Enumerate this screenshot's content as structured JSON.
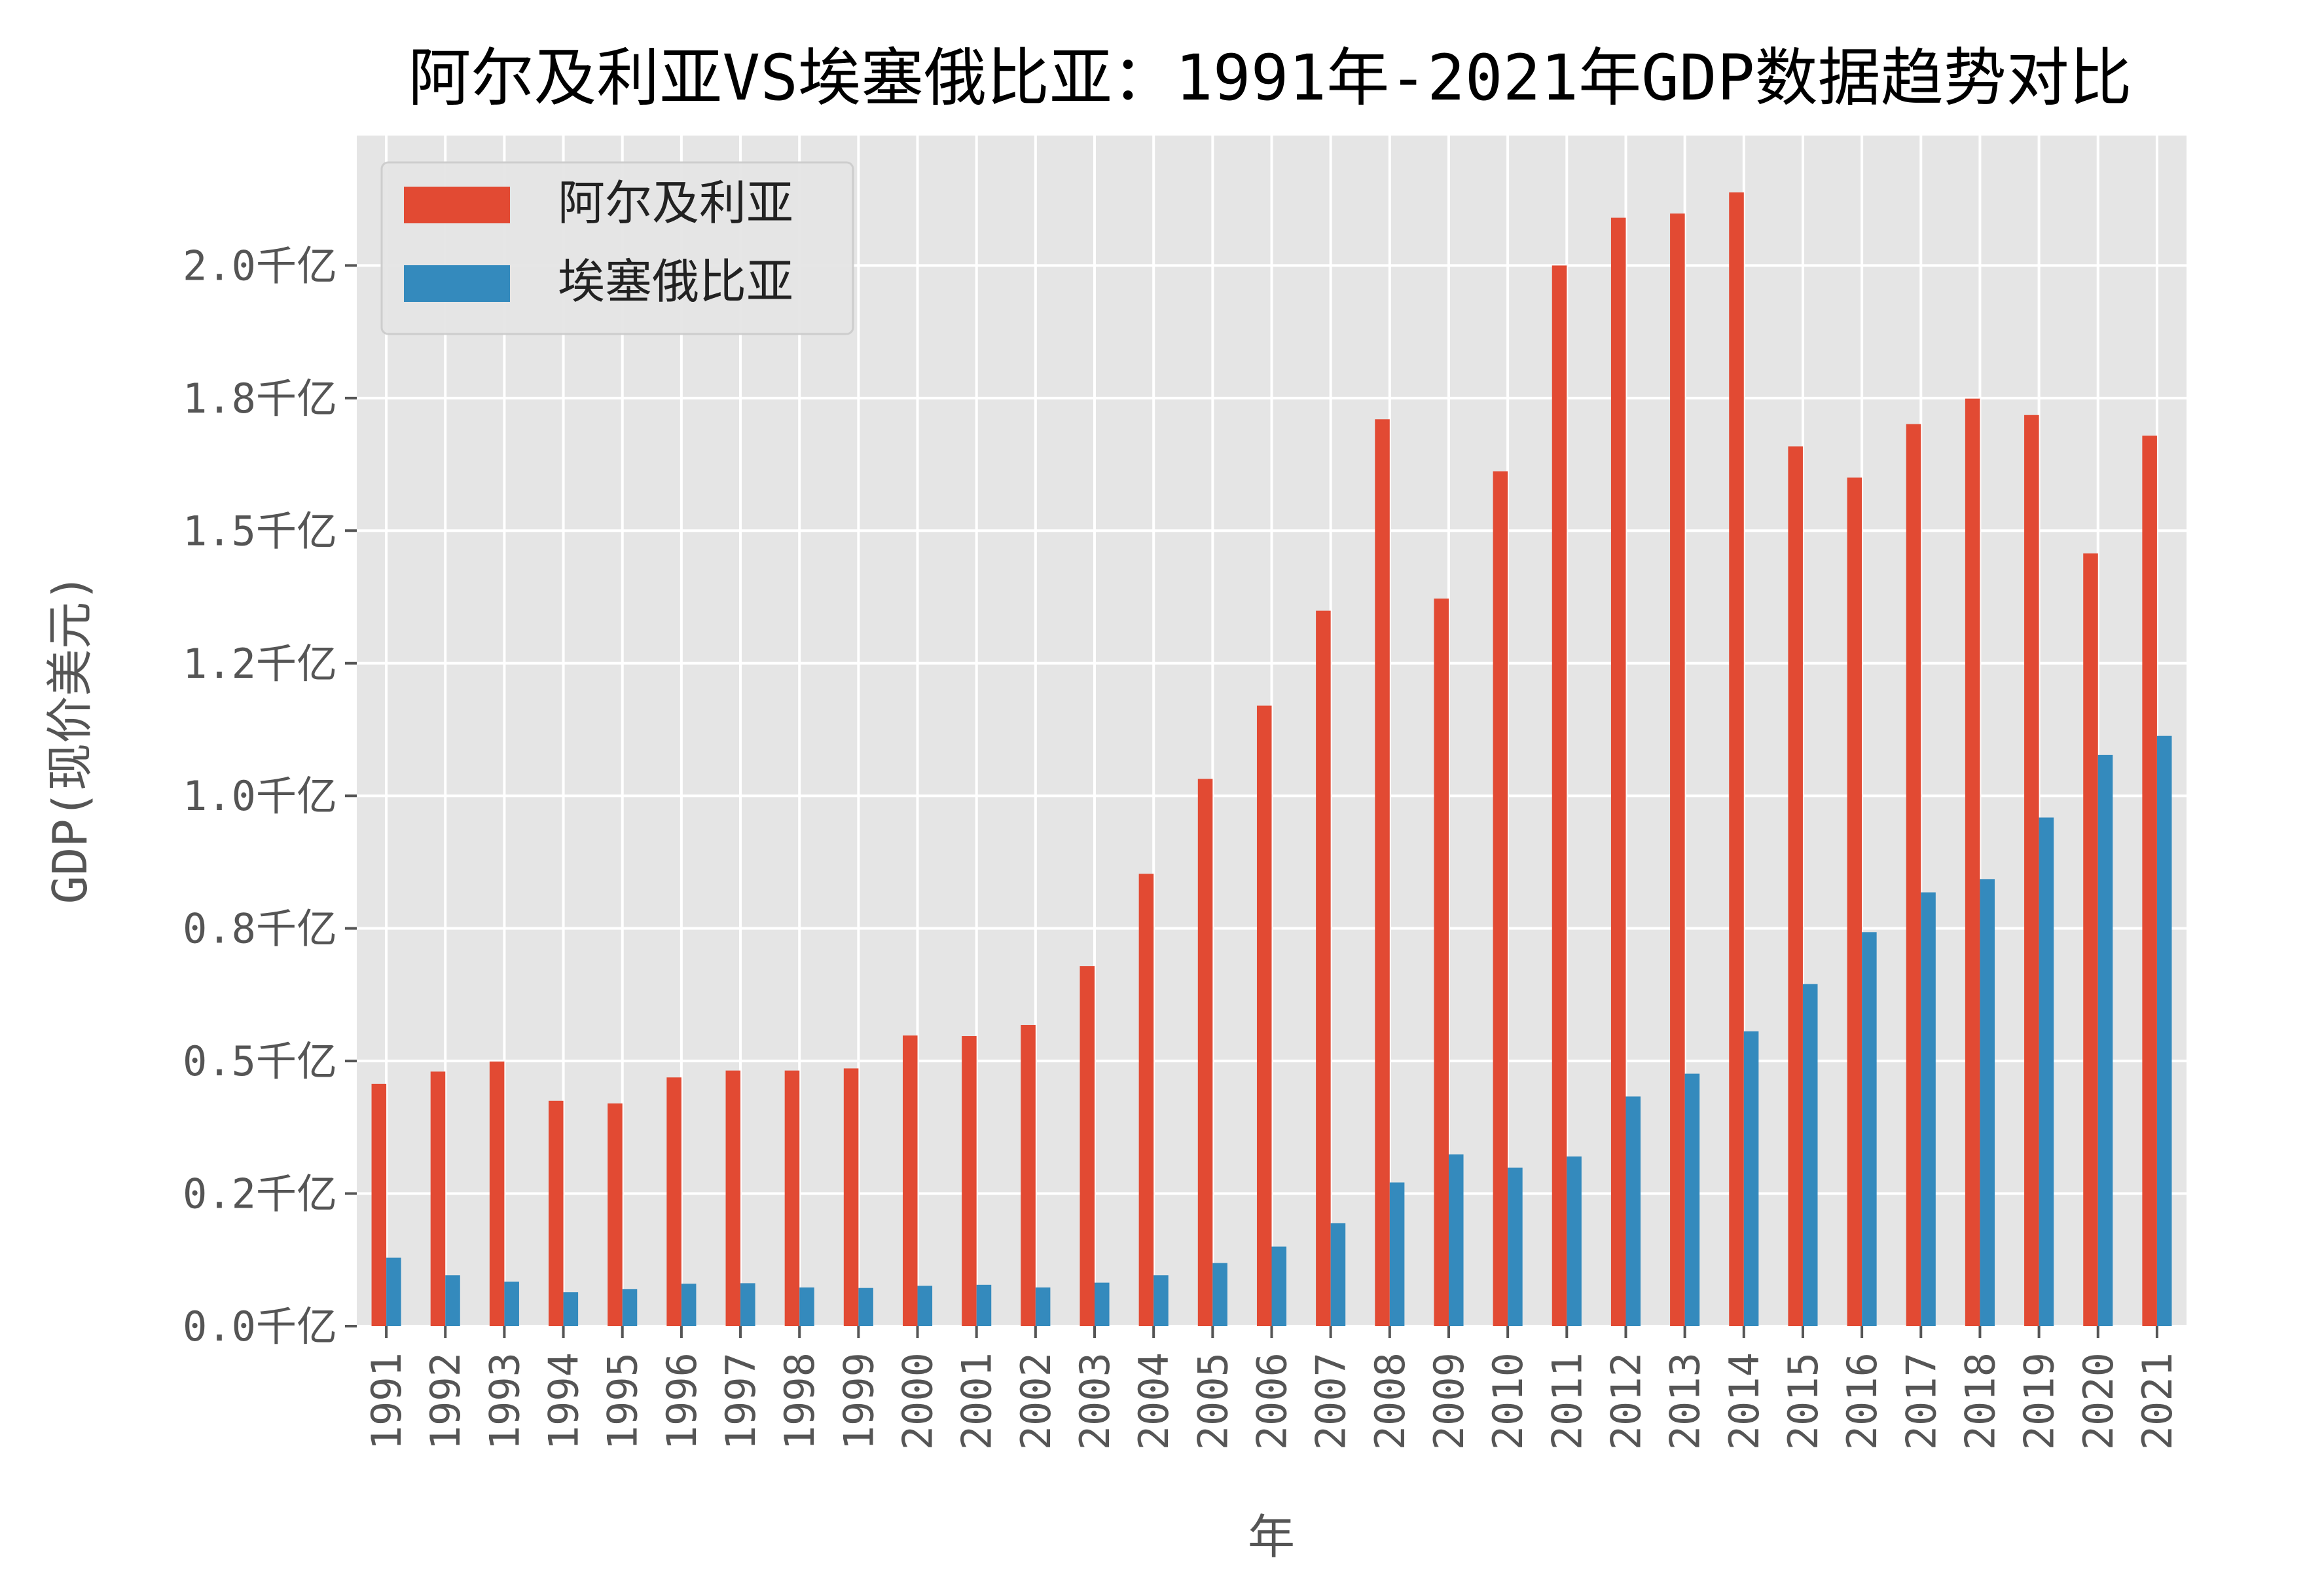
{
  "chart_data": {
    "type": "bar",
    "title": "阿尔及利亚VS埃塞俄比亚：1991年-2021年GDP数据趋势对比",
    "xlabel": "年",
    "ylabel": "GDP(现价美元)",
    "categories": [
      "1991",
      "1992",
      "1993",
      "1994",
      "1995",
      "1996",
      "1997",
      "1998",
      "1999",
      "2000",
      "2001",
      "2002",
      "2003",
      "2004",
      "2005",
      "2006",
      "2007",
      "2008",
      "2009",
      "2010",
      "2011",
      "2012",
      "2013",
      "2014",
      "2015",
      "2016",
      "2017",
      "2018",
      "2019",
      "2020",
      "2021"
    ],
    "series": [
      {
        "name": "阿尔及利亚",
        "color": "#E24A33",
        "values": [
          45.7,
          48.0,
          49.9,
          42.5,
          42.0,
          46.9,
          48.2,
          48.2,
          48.6,
          54.8,
          54.7,
          56.8,
          67.9,
          85.3,
          103.2,
          117.0,
          134.9,
          171.0,
          137.2,
          161.2,
          200.0,
          209.0,
          209.8,
          213.8,
          165.9,
          160.0,
          170.1,
          174.9,
          171.8,
          145.7,
          167.9
        ]
      },
      {
        "name": "埃塞俄比亚",
        "color": "#348ABD",
        "values": [
          12.9,
          9.6,
          8.4,
          6.4,
          7.0,
          8.0,
          8.1,
          7.3,
          7.2,
          7.6,
          7.8,
          7.3,
          8.2,
          9.6,
          11.9,
          15.0,
          19.4,
          27.1,
          32.4,
          29.9,
          32.0,
          43.3,
          47.6,
          55.6,
          64.5,
          74.3,
          81.8,
          84.3,
          95.9,
          107.7,
          111.3
        ]
      }
    ],
    "yticks": [
      {
        "value": 0,
        "label": "0.0千亿"
      },
      {
        "value": 25,
        "label": "0.2千亿"
      },
      {
        "value": 50,
        "label": "0.5千亿"
      },
      {
        "value": 75,
        "label": "0.8千亿"
      },
      {
        "value": 100,
        "label": "1.0千亿"
      },
      {
        "value": 125,
        "label": "1.2千亿"
      },
      {
        "value": 150,
        "label": "1.5千亿"
      },
      {
        "value": 175,
        "label": "1.8千亿"
      },
      {
        "value": 200,
        "label": "2.0千亿"
      }
    ],
    "ylim": [
      0,
      224.5
    ],
    "grid": true,
    "legend_position": "top-left",
    "plot_background": "#E5E5E5"
  }
}
